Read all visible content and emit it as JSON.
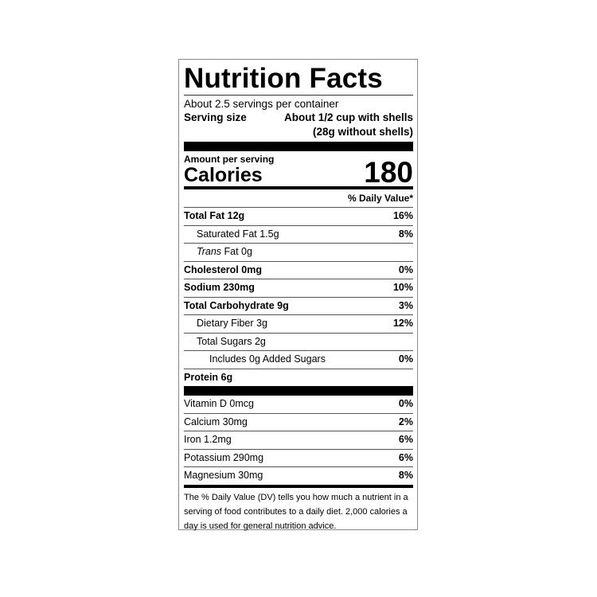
{
  "title": "Nutrition Facts",
  "servings_per_container": "About 2.5 servings per container",
  "serving_size": {
    "label": "Serving size",
    "line1": "About 1/2 cup with shells",
    "line2": "(28g without shells)"
  },
  "amount_per_serving": "Amount per serving",
  "calories": {
    "label": "Calories",
    "value": "180"
  },
  "daily_value_header": "% Daily Value*",
  "nutrients": [
    {
      "name": "Total Fat",
      "amount": "12g",
      "dv": "16%"
    },
    {
      "name": "Saturated Fat",
      "amount": "1.5g",
      "dv": "8%"
    },
    {
      "name": "Trans",
      "amount": "Fat 0g",
      "dv": ""
    },
    {
      "name": "Cholesterol",
      "amount": "0mg",
      "dv": "0%"
    },
    {
      "name": "Sodium",
      "amount": "230mg",
      "dv": "10%"
    },
    {
      "name": "Total Carbohydrate",
      "amount": "9g",
      "dv": "3%"
    },
    {
      "name": "Dietary Fiber",
      "amount": "3g",
      "dv": "12%"
    },
    {
      "name": "Total Sugars",
      "amount": "2g",
      "dv": ""
    },
    {
      "name": "Includes 0g Added Sugars",
      "amount": "",
      "dv": "0%"
    },
    {
      "name": "Protein",
      "amount": "6g",
      "dv": ""
    }
  ],
  "vitamins": [
    {
      "label": "Vitamin D 0mcg",
      "dv": "0%"
    },
    {
      "label": "Calcium 30mg",
      "dv": "2%"
    },
    {
      "label": "Iron 1.2mg",
      "dv": "6%"
    },
    {
      "label": "Potassium 290mg",
      "dv": "6%"
    },
    {
      "label": "Magnesium 30mg",
      "dv": "8%"
    }
  ],
  "footnote": "The % Daily Value (DV) tells you how much a nutrient in a serving of food contributes to a daily diet. 2,000 calories a day is used for general nutrition advice."
}
